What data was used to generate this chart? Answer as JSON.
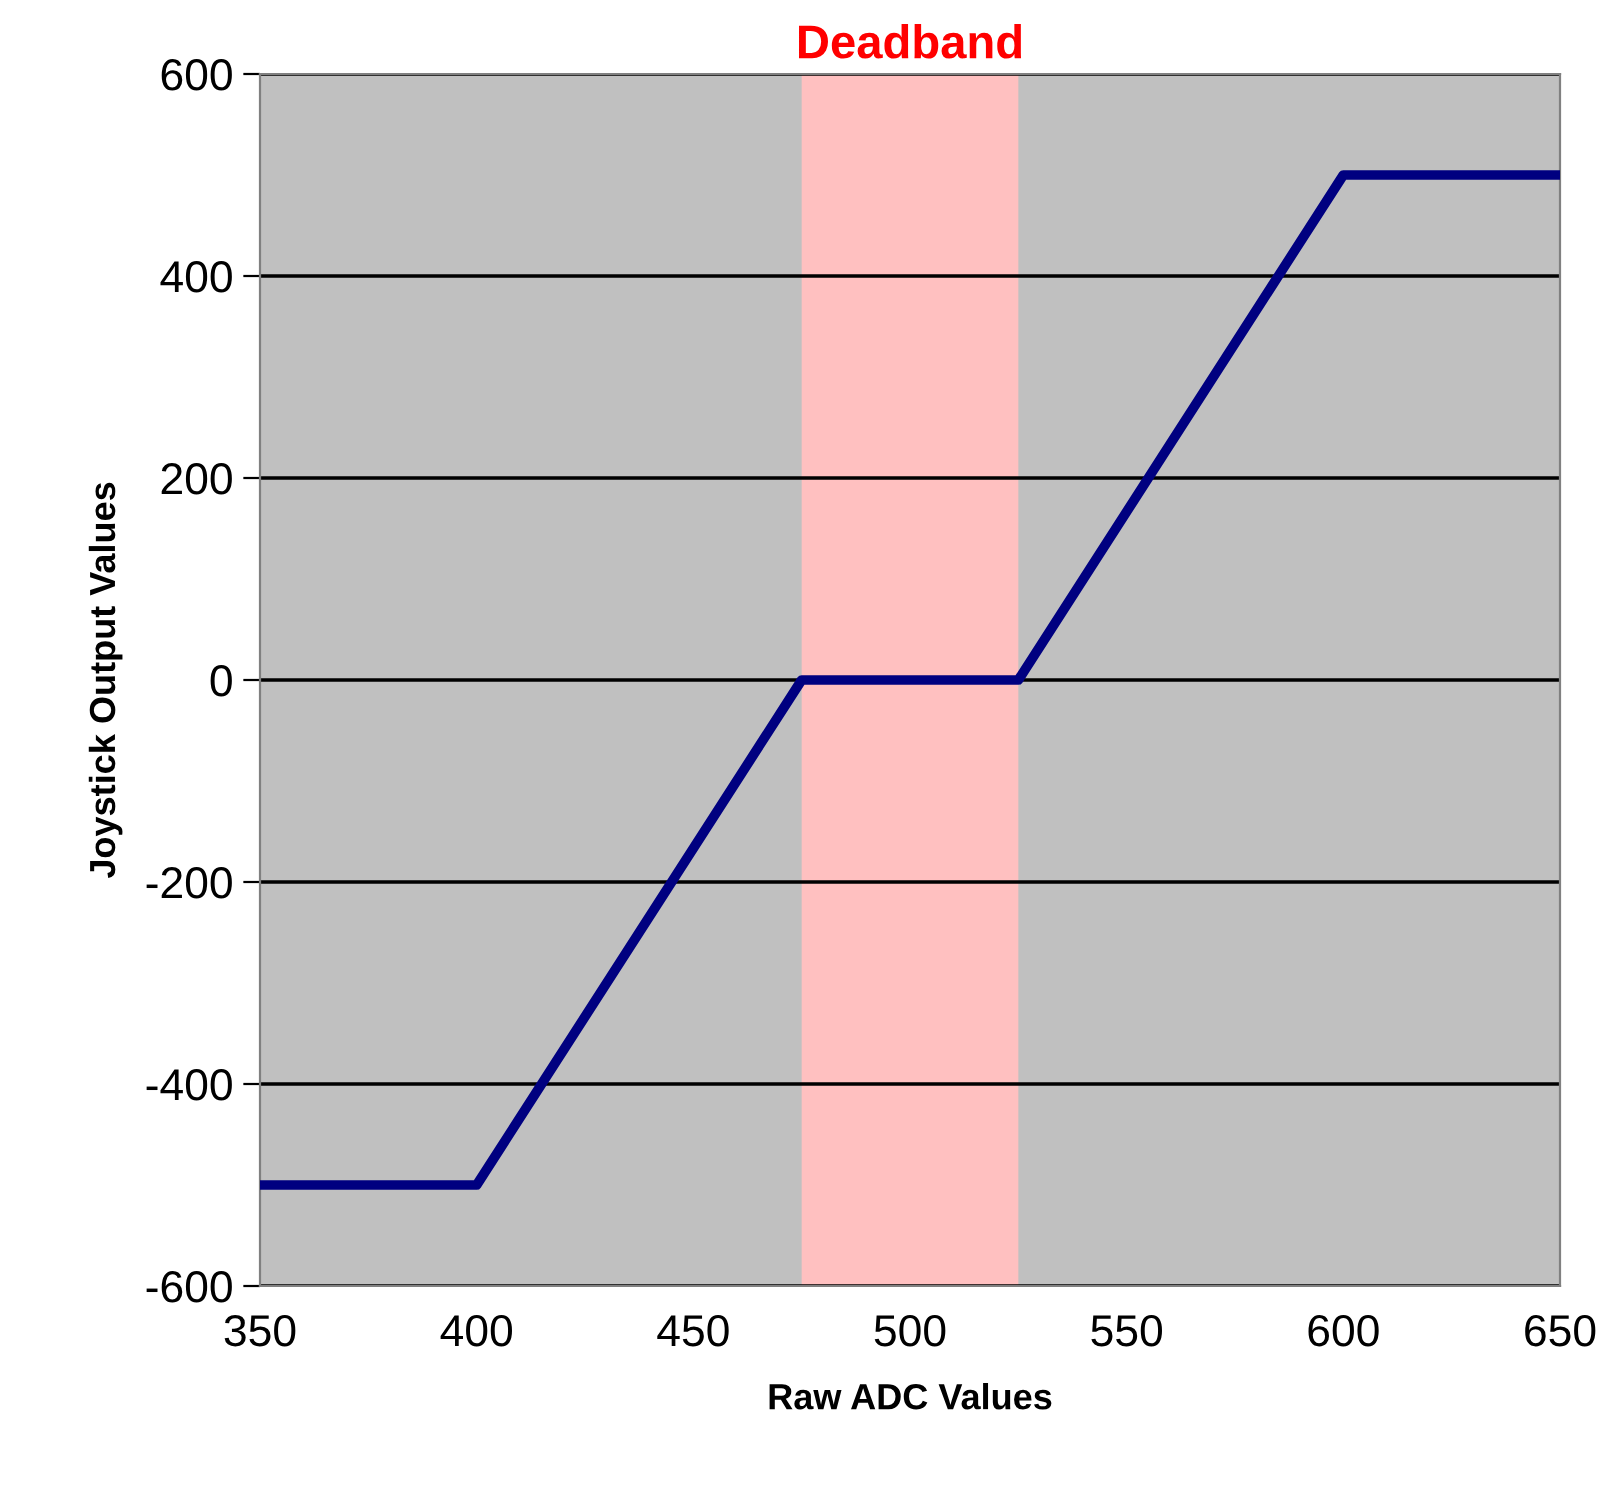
{
  "chart_data": {
    "type": "line",
    "xlabel": "Raw ADC Values",
    "ylabel": "Joystick Output Values",
    "x": [
      350,
      400,
      475,
      525,
      600,
      650
    ],
    "series": [
      {
        "color": "#000080",
        "values": [
          -500,
          -500,
          0,
          0,
          500,
          500
        ]
      }
    ],
    "xlim": [
      350,
      650
    ],
    "xticks": [
      350,
      400,
      450,
      500,
      550,
      600,
      650
    ],
    "ylim": [
      -600,
      600
    ],
    "yticks": [
      -600,
      -400,
      -200,
      0,
      200,
      400,
      600
    ],
    "grid": "y",
    "line_style": "solid",
    "marker": "none",
    "bands": [
      {
        "axis": "x",
        "from": 475,
        "to": 525,
        "label": "Deadband",
        "color": "#ffc0c0"
      }
    ]
  }
}
